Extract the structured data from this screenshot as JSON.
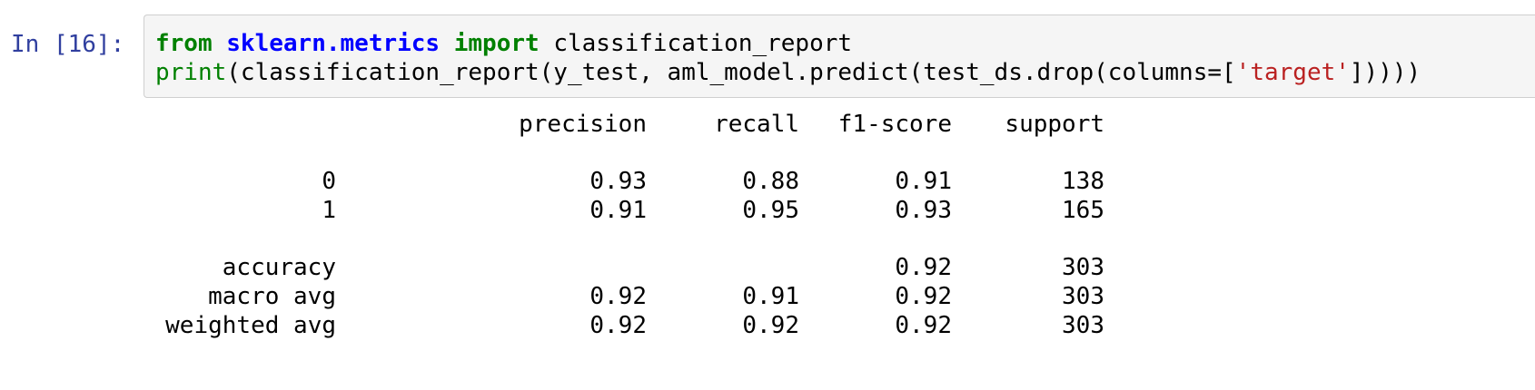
{
  "cell": {
    "prompt": "In [16]:",
    "code": {
      "line1": {
        "from_kw": "from",
        "module": "sklearn.metrics",
        "import_kw": "import",
        "name": "classification_report"
      },
      "line2": {
        "print_fn": "print",
        "call_before": "(classification_report(y_test, aml_model.predict(test_ds.drop(columns=[",
        "string": "'target'",
        "call_after": "]))))"
      }
    }
  },
  "report": {
    "headers": [
      "precision",
      "recall",
      "f1-score",
      "support"
    ],
    "rows": [
      {
        "label": "0",
        "precision": "0.93",
        "recall": "0.88",
        "f1": "0.91",
        "support": "138"
      },
      {
        "label": "1",
        "precision": "0.91",
        "recall": "0.95",
        "f1": "0.93",
        "support": "165"
      }
    ],
    "summary": [
      {
        "label": "accuracy",
        "precision": "",
        "recall": "",
        "f1": "0.92",
        "support": "303"
      },
      {
        "label": "macro avg",
        "precision": "0.92",
        "recall": "0.91",
        "f1": "0.92",
        "support": "303"
      },
      {
        "label": "weighted avg",
        "precision": "0.92",
        "recall": "0.92",
        "f1": "0.92",
        "support": "303"
      }
    ]
  }
}
